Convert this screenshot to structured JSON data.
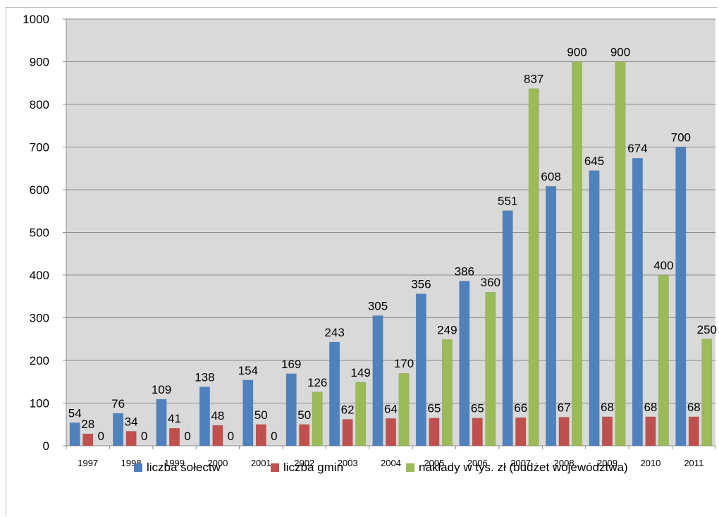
{
  "chart_data": {
    "type": "bar",
    "categories": [
      "1997",
      "1998",
      "1999",
      "2000",
      "2001",
      "2002",
      "2003",
      "2004",
      "2005",
      "2006",
      "2007",
      "2008",
      "2009",
      "2010",
      "2011"
    ],
    "series": [
      {
        "name": "liczba sołectw",
        "color": "#4f81bd",
        "values": [
          54,
          76,
          109,
          138,
          154,
          169,
          243,
          305,
          356,
          386,
          551,
          608,
          645,
          674,
          700
        ]
      },
      {
        "name": "liczba gmin",
        "color": "#c0504d",
        "values": [
          28,
          34,
          41,
          48,
          50,
          50,
          62,
          64,
          65,
          65,
          66,
          67,
          68,
          68,
          68
        ]
      },
      {
        "name": "nakłady w tys. zł (budżet województwa)",
        "color": "#9bbb59",
        "values": [
          0,
          0,
          0,
          0,
          0,
          126,
          149,
          170,
          249,
          360,
          837,
          900,
          900,
          400,
          250
        ]
      }
    ],
    "ylim": [
      0,
      1000
    ],
    "yticks": [
      "0",
      "100",
      "200",
      "300",
      "400",
      "500",
      "600",
      "700",
      "800",
      "900",
      "1000"
    ],
    "grid": true,
    "legend": "bottom",
    "plot_background": "#d9d9d9",
    "title": "",
    "xlabel": "",
    "ylabel": ""
  }
}
